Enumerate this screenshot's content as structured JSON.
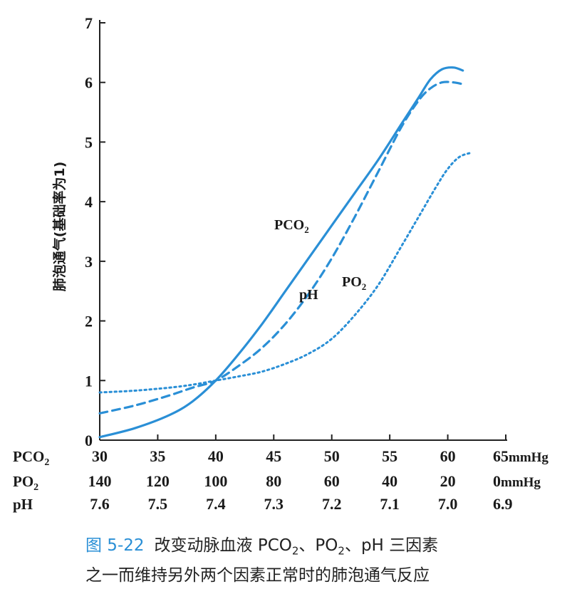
{
  "chart_data": {
    "type": "line",
    "ylabel": "肺泡通气(基础率为1)",
    "y_ticks": [
      "0",
      "1",
      "2",
      "3",
      "4",
      "5",
      "6",
      "7"
    ],
    "ylim": [
      0,
      7
    ],
    "x_rows": [
      {
        "label": "PCO",
        "sub": "2",
        "ticks": [
          "30",
          "35",
          "40",
          "45",
          "50",
          "55",
          "60",
          "65"
        ],
        "unit": "mmHg"
      },
      {
        "label": "PO",
        "sub": "2",
        "ticks": [
          "140",
          "120",
          "100",
          "80",
          "60",
          "40",
          "20",
          "0"
        ],
        "unit": "mmHg"
      },
      {
        "label": "pH",
        "sub": "",
        "ticks": [
          "7.6",
          "7.5",
          "7.4",
          "7.3",
          "7.2",
          "7.1",
          "7.0",
          "6.9"
        ],
        "unit": ""
      }
    ],
    "xlim": [
      30,
      65
    ],
    "series": [
      {
        "name": "PCO",
        "sub": "2",
        "style": "solid",
        "x": [
          30,
          33,
          36,
          38,
          40,
          42,
          44,
          46,
          48,
          50,
          52,
          54,
          56,
          57.5,
          58.5,
          59.5,
          60.5,
          61.3
        ],
        "y": [
          0.05,
          0.2,
          0.42,
          0.65,
          1.0,
          1.45,
          1.95,
          2.5,
          3.05,
          3.6,
          4.15,
          4.7,
          5.3,
          5.75,
          6.05,
          6.22,
          6.25,
          6.2
        ]
      },
      {
        "name": "pH",
        "sub": "",
        "style": "dashed",
        "x": [
          30,
          33,
          36,
          38,
          40,
          42,
          44,
          46,
          48,
          50,
          52,
          54,
          56,
          57.5,
          58.5,
          59.5,
          60.5,
          61.3
        ],
        "y": [
          0.45,
          0.58,
          0.75,
          0.88,
          1.0,
          1.25,
          1.55,
          1.95,
          2.45,
          3.05,
          3.75,
          4.5,
          5.25,
          5.7,
          5.9,
          6.0,
          6.0,
          5.97
        ]
      },
      {
        "name": "PO",
        "sub": "2",
        "style": "dotted",
        "x": [
          30,
          33,
          36,
          38,
          40,
          42,
          44,
          46,
          48,
          50,
          52,
          54,
          56,
          57.5,
          59,
          60,
          61,
          62
        ],
        "y": [
          0.8,
          0.83,
          0.88,
          0.93,
          1.0,
          1.07,
          1.15,
          1.28,
          1.45,
          1.7,
          2.1,
          2.6,
          3.25,
          3.75,
          4.25,
          4.55,
          4.75,
          4.82
        ]
      }
    ],
    "color": "#2a8fd6",
    "grid": false
  },
  "caption": {
    "figure_number": "图 5-22",
    "line1_text": "改变动脉血液 PCO",
    "sub1": "2",
    "sep1": "、PO",
    "sub2": "2",
    "line1_tail": "、pH 三因素",
    "line2_text": "之一而维持另外两个因素正常时的肺泡通气反应"
  }
}
